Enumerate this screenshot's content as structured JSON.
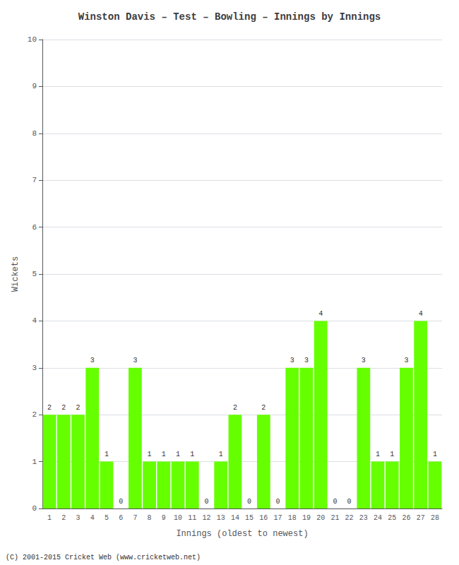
{
  "chart_data": {
    "type": "bar",
    "title": "Winston Davis – Test – Bowling – Innings by Innings",
    "x_label": "Innings (oldest to newest)",
    "y_label": "Wickets",
    "categories": [
      1,
      2,
      3,
      4,
      5,
      6,
      7,
      8,
      9,
      10,
      11,
      12,
      13,
      14,
      15,
      16,
      17,
      18,
      19,
      20,
      21,
      22,
      23,
      24,
      25,
      26,
      27,
      28
    ],
    "values": [
      2,
      2,
      2,
      3,
      1,
      0,
      3,
      1,
      1,
      1,
      1,
      0,
      1,
      2,
      0,
      2,
      0,
      3,
      3,
      4,
      0,
      0,
      3,
      1,
      1,
      3,
      4,
      1
    ],
    "color": "#66ff00",
    "ylim": [
      0,
      10
    ],
    "yticks": [
      0,
      1,
      2,
      3,
      4,
      5,
      6,
      7,
      8,
      9,
      10
    ],
    "grid": true,
    "data_labels": true,
    "footer": "(C) 2001-2015 Cricket Web (www.cricketweb.net)"
  }
}
